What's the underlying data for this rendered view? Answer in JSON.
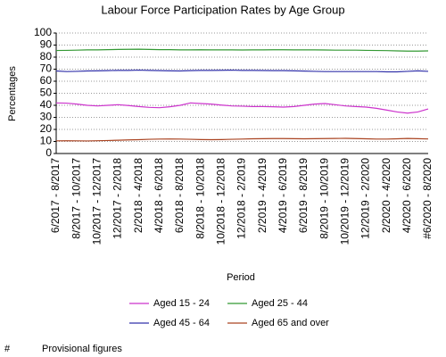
{
  "chart_data": {
    "type": "line",
    "title": "Labour Force Participation Rates by Age Group",
    "x_label": "Period",
    "y_label": "Percentages",
    "categories": [
      "6/2017 - 8/2017",
      null,
      "8/2017 - 10/2017",
      null,
      "10/2017 - 12/2017",
      null,
      "12/2017 - 2/2018",
      null,
      "2/2018 - 4/2018",
      null,
      "4/2018 - 6/2018",
      null,
      "6/2018 - 8/2018",
      null,
      "8/2018 - 10/2018",
      null,
      "10/2018 - 12/2018",
      null,
      "12/2018 - 2/2019",
      null,
      "2/2019 - 4/2019",
      null,
      "4/2019 - 6/2019",
      null,
      "6/2019 - 8/2019",
      null,
      "8/2019 - 10/2019",
      null,
      "10/2019 - 12/2019",
      null,
      "12/2019 - 2/2020",
      null,
      "2/2020 - 4/2020",
      null,
      "4/2020 - 6/2020",
      null,
      "#6/2020 - 8/2020"
    ],
    "series": [
      {
        "name": "Aged 15 - 24",
        "color": "#cc33cc",
        "values": [
          42,
          41.8,
          41,
          40,
          39.5,
          40,
          40.5,
          39.8,
          39,
          38.3,
          38,
          38.8,
          40,
          42,
          41.5,
          41,
          40.2,
          39.5,
          39.3,
          39,
          39,
          38.8,
          38.5,
          39,
          40,
          41,
          41.5,
          40.5,
          39.5,
          39,
          38.5,
          37.5,
          36,
          34.5,
          33.5,
          34.5,
          37
        ]
      },
      {
        "name": "Aged 25 - 44",
        "color": "#339933",
        "values": [
          85.5,
          85.6,
          85.8,
          86,
          86,
          86.2,
          86.4,
          86.5,
          86.6,
          86.4,
          86.2,
          86.2,
          86,
          86,
          86.1,
          86,
          86,
          86,
          85.9,
          86,
          86,
          86.1,
          86.1,
          86,
          86,
          86,
          85.9,
          85.8,
          85.8,
          85.8,
          85.6,
          85.5,
          85.4,
          85.2,
          85,
          85,
          85.2
        ]
      },
      {
        "name": "Aged 45 - 64",
        "color": "#3333aa",
        "values": [
          68.5,
          68,
          68.2,
          68.5,
          68.6,
          68.8,
          69,
          69,
          69.2,
          69,
          68.8,
          68.6,
          68.5,
          68.8,
          69,
          69,
          69.1,
          69.2,
          69,
          69,
          68.9,
          68.8,
          68.8,
          68.6,
          68.4,
          68.2,
          68,
          68,
          68,
          68,
          68,
          68,
          67.8,
          67.8,
          68.2,
          68.6,
          68.2
        ]
      },
      {
        "name": "Aged 65 and over",
        "color": "#aa4422",
        "values": [
          10.5,
          10.6,
          10.5,
          10.4,
          10.6,
          10.8,
          11,
          11.3,
          11.5,
          11.8,
          12,
          12.1,
          12,
          11.8,
          11.6,
          11.5,
          11.6,
          11.8,
          12,
          12.2,
          12.3,
          12.4,
          12.4,
          12.3,
          12.2,
          12.3,
          12.4,
          12.5,
          12.6,
          12.4,
          12.2,
          12,
          12,
          12.2,
          12.5,
          12.3,
          12.1
        ]
      }
    ],
    "ylim": [
      0,
      100
    ],
    "yticks": [
      0,
      10,
      20,
      30,
      40,
      50,
      60,
      70,
      80,
      90,
      100
    ],
    "grid": true,
    "footnote": {
      "symbol": "#",
      "text": "Provisional figures"
    }
  }
}
